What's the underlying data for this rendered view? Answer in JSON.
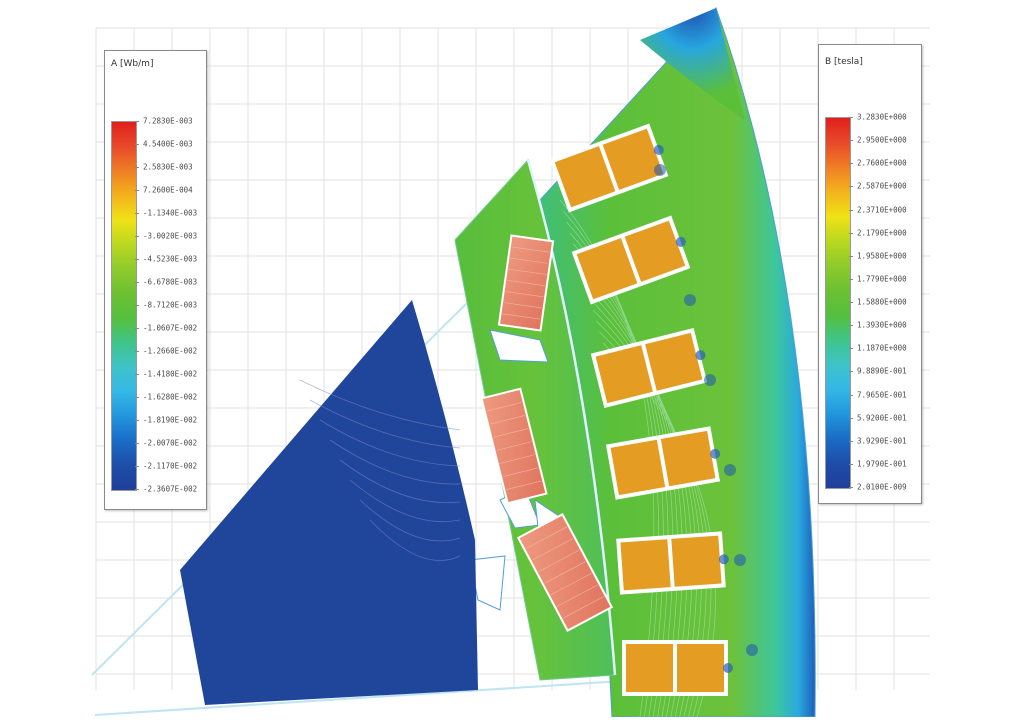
{
  "legend_left": {
    "title": "A [Wb/m]",
    "gradient": [
      "#1f3f9a",
      "#1e4da8",
      "#1a6cc6",
      "#2296dd",
      "#33b8e6",
      "#3fc3c9",
      "#3fc58a",
      "#55bf3e",
      "#6cc032",
      "#8ecb2c",
      "#b9d81f",
      "#f0e216",
      "#f3b31c",
      "#ef7f24",
      "#e8492a",
      "#e0201e"
    ],
    "labels": [
      "7.2830E-003",
      "4.5400E-003",
      "2.5830E-003",
      "7.2600E-004",
      "-1.1340E-003",
      "-3.0020E-003",
      "-4.5230E-003",
      "-6.6780E-003",
      "-8.7120E-003",
      "-1.0607E-002",
      "-1.2660E-002",
      "-1.4180E-002",
      "-1.6280E-002",
      "-1.8190E-002",
      "-2.0070E-002",
      "-2.1170E-002",
      "-2.3607E-002"
    ]
  },
  "legend_right": {
    "title": "B [tesla]",
    "gradient": [
      "#1f3f9a",
      "#1e4da8",
      "#1a6cc6",
      "#2296dd",
      "#33b8e6",
      "#3fc3c9",
      "#3fc58a",
      "#55bf3e",
      "#6cc032",
      "#8ecb2c",
      "#b9d81f",
      "#f0e216",
      "#f3b31c",
      "#ef7f24",
      "#e8492a",
      "#e0201e"
    ],
    "labels": [
      "3.2830E+000",
      "2.9500E+000",
      "2.7600E+000",
      "2.5870E+000",
      "2.3710E+000",
      "2.1790E+000",
      "1.9580E+000",
      "1.7790E+000",
      "1.5880E+000",
      "1.3930E+000",
      "1.1870E+000",
      "9.8890E-001",
      "7.9650E-001",
      "5.9200E-001",
      "3.9290E-001",
      "1.9790E-001",
      "2.0100E-009"
    ]
  },
  "colors": {
    "coil": "#e49c22",
    "coil_border": "#ffffff",
    "field_green": "#5bbf3a",
    "rotor_blue": "#20469c",
    "grid": "#e2e2e2",
    "magnet": "#e9836e",
    "boundary": "#bfe4f2"
  }
}
